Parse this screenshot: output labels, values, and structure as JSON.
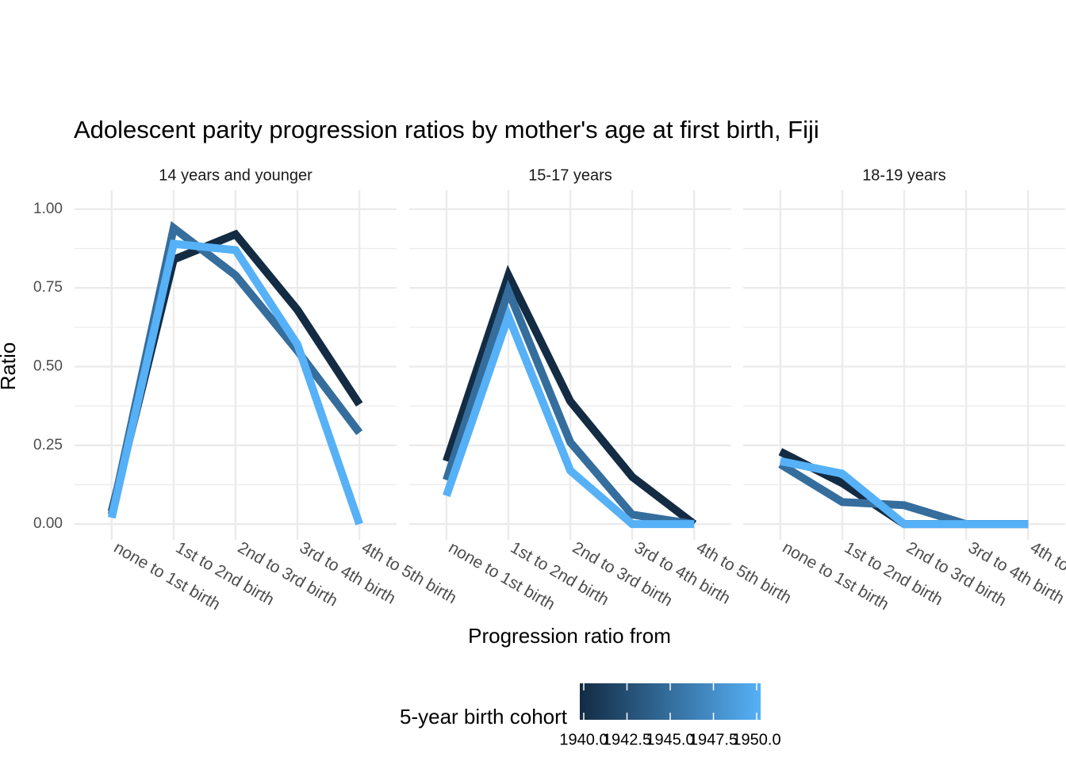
{
  "chart_data": {
    "type": "line",
    "title": "Adolescent parity progression ratios by mother's age at first birth,  Fiji",
    "x_label": "Progression ratio from",
    "y_label": "Ratio",
    "categories": [
      "none to 1st birth",
      "1st to 2nd birth",
      "2nd to 3rd birth",
      "3rd to 4th birth",
      "4th to 5th birth"
    ],
    "ylim": [
      -0.05,
      1.06
    ],
    "yticks": [
      {
        "value": 0,
        "label": "0.00"
      },
      {
        "value": 0.25,
        "label": "0.25"
      },
      {
        "value": 0.5,
        "label": "0.50"
      },
      {
        "value": 0.75,
        "label": "0.75"
      },
      {
        "value": 1,
        "label": "1.00"
      }
    ],
    "grid": true,
    "legend": {
      "title": "5-year birth cohort",
      "position": "bottom",
      "low_color": "#132B43",
      "high_color": "#56B1F7",
      "lim": [
        1940,
        1950
      ],
      "ticks": [
        {
          "value": 1940,
          "label": "1940.0"
        },
        {
          "value": 1942.5,
          "label": "1942.5"
        },
        {
          "value": 1945,
          "label": "1945.0"
        },
        {
          "value": 1947.5,
          "label": "1947.5"
        },
        {
          "value": 1950,
          "label": "1950.0"
        }
      ]
    },
    "facets": [
      {
        "title": "14 years and younger",
        "series": [
          {
            "cohort": 1940,
            "values": [
              0.04,
              0.84,
              0.92,
              0.68,
              0.38
            ]
          },
          {
            "cohort": 1945,
            "values": [
              0.03,
              0.94,
              0.79,
              0.55,
              0.29
            ]
          },
          {
            "cohort": 1950,
            "values": [
              0.02,
              0.89,
              0.87,
              0.57,
              0.0
            ]
          }
        ]
      },
      {
        "title": "15-17 years",
        "series": [
          {
            "cohort": 1940,
            "values": [
              0.2,
              0.79,
              0.39,
              0.15,
              0.0
            ]
          },
          {
            "cohort": 1945,
            "values": [
              0.14,
              0.74,
              0.26,
              0.03,
              0.0
            ]
          },
          {
            "cohort": 1950,
            "values": [
              0.09,
              0.66,
              0.17,
              0.0,
              0.0
            ]
          }
        ]
      },
      {
        "title": "18-19 years",
        "series": [
          {
            "cohort": 1940,
            "values": [
              0.23,
              0.13,
              0.0,
              0.0,
              0.0
            ]
          },
          {
            "cohort": 1945,
            "values": [
              0.19,
              0.07,
              0.06,
              0.0,
              0.0
            ]
          },
          {
            "cohort": 1950,
            "values": [
              0.2,
              0.16,
              0.0,
              0.0,
              0.0
            ]
          }
        ]
      }
    ]
  }
}
